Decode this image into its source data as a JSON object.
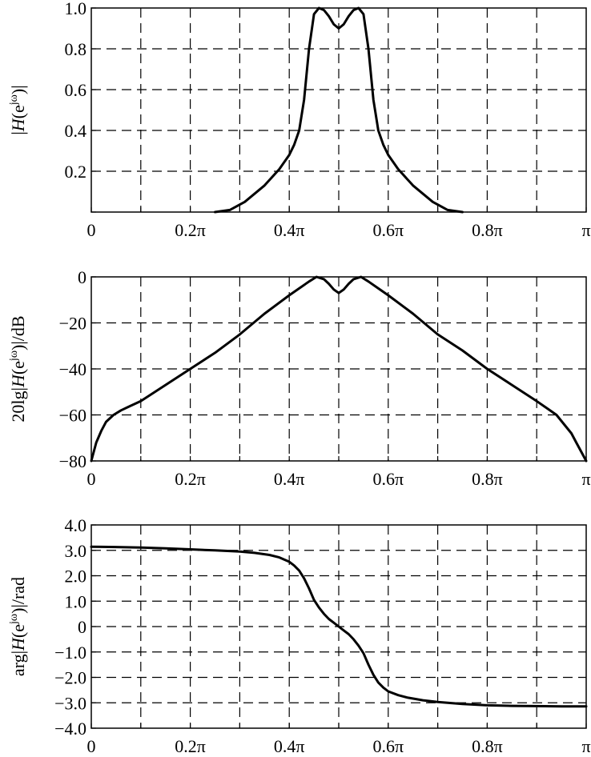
{
  "chart_data": [
    {
      "type": "line",
      "ylabel": "|H(e^jω)|",
      "ylabel_parts": [
        "|",
        "H",
        "(e",
        "jω",
        ")|"
      ],
      "xlim": [
        0,
        1
      ],
      "ylim": [
        0,
        1.0
      ],
      "xticks": [
        0,
        0.1,
        0.2,
        0.3,
        0.4,
        0.5,
        0.6,
        0.7,
        0.8,
        0.9,
        1.0
      ],
      "xtick_labels": [
        "0",
        "",
        "0.2π",
        "",
        "0.4π",
        "",
        "0.6π",
        "",
        "0.8π",
        "",
        "π"
      ],
      "yticks": [
        0,
        0.2,
        0.4,
        0.6,
        0.8,
        1.0
      ],
      "ytick_labels": [
        "",
        "0.2",
        "0.4",
        "0.6",
        "0.8",
        "1.0"
      ],
      "grid": true,
      "x": [
        0.25,
        0.28,
        0.31,
        0.35,
        0.38,
        0.4,
        0.41,
        0.42,
        0.43,
        0.44,
        0.45,
        0.46,
        0.47,
        0.48,
        0.49,
        0.5,
        0.51,
        0.52,
        0.53,
        0.54,
        0.55,
        0.56,
        0.57,
        0.58,
        0.59,
        0.6,
        0.62,
        0.65,
        0.69,
        0.72,
        0.75
      ],
      "y": [
        0.0,
        0.01,
        0.05,
        0.13,
        0.21,
        0.28,
        0.33,
        0.4,
        0.55,
        0.8,
        0.97,
        1.0,
        0.99,
        0.96,
        0.92,
        0.9,
        0.92,
        0.96,
        0.99,
        1.0,
        0.97,
        0.8,
        0.55,
        0.4,
        0.33,
        0.28,
        0.21,
        0.13,
        0.05,
        0.01,
        0.0
      ]
    },
    {
      "type": "line",
      "ylabel": "20lg|H(e^jω)|/dB",
      "ylabel_parts": [
        "20lg|",
        "H",
        "(e",
        "jω",
        ")|/dB"
      ],
      "xlim": [
        0,
        1
      ],
      "ylim": [
        -80,
        0
      ],
      "xticks": [
        0,
        0.1,
        0.2,
        0.3,
        0.4,
        0.5,
        0.6,
        0.7,
        0.8,
        0.9,
        1.0
      ],
      "xtick_labels": [
        "0",
        "",
        "0.2π",
        "",
        "0.4π",
        "",
        "0.6π",
        "",
        "0.8π",
        "",
        "π"
      ],
      "yticks": [
        -80,
        -60,
        -40,
        -20,
        0
      ],
      "ytick_labels": [
        "−80",
        "−60",
        "−40",
        "−20",
        "0"
      ],
      "grid": true,
      "x": [
        0.0,
        0.005,
        0.01,
        0.02,
        0.03,
        0.045,
        0.06,
        0.08,
        0.1,
        0.15,
        0.2,
        0.25,
        0.3,
        0.35,
        0.4,
        0.42,
        0.44,
        0.455,
        0.47,
        0.48,
        0.49,
        0.5,
        0.51,
        0.52,
        0.53,
        0.545,
        0.56,
        0.58,
        0.6,
        0.65,
        0.7,
        0.75,
        0.8,
        0.85,
        0.9,
        0.92,
        0.94,
        0.955,
        0.97,
        0.98,
        0.99,
        1.0
      ],
      "y": [
        -80,
        -76,
        -72,
        -67,
        -63,
        -60,
        -58,
        -56,
        -54,
        -47,
        -40,
        -33,
        -25,
        -16,
        -8,
        -5,
        -2,
        0,
        -1,
        -3,
        -5.5,
        -7,
        -5.5,
        -3,
        -1,
        0,
        -2,
        -5,
        -8,
        -16,
        -25,
        -32,
        -40,
        -47,
        -54,
        -57,
        -60,
        -64,
        -68,
        -72,
        -76,
        -80
      ]
    },
    {
      "type": "line",
      "ylabel": "arg|H(e^jω)|/rad",
      "ylabel_parts": [
        "arg|",
        "H",
        "(e",
        "jω",
        ")|/rad"
      ],
      "xlim": [
        0,
        1
      ],
      "ylim": [
        -4.0,
        4.0
      ],
      "xticks": [
        0,
        0.1,
        0.2,
        0.3,
        0.4,
        0.5,
        0.6,
        0.7,
        0.8,
        0.9,
        1.0
      ],
      "xtick_labels": [
        "0",
        "",
        "0.2π",
        "",
        "0.4π",
        "",
        "0.6π",
        "",
        "0.8π",
        "",
        "π"
      ],
      "yticks": [
        -4.0,
        -3.0,
        -2.0,
        -1.0,
        0,
        1.0,
        2.0,
        3.0,
        4.0
      ],
      "ytick_labels": [
        "−4.0",
        "−3.0",
        "−2.0",
        "−1.0",
        "0",
        "1.0",
        "2.0",
        "3.0",
        "4.0"
      ],
      "grid": true,
      "x": [
        0.0,
        0.05,
        0.1,
        0.15,
        0.2,
        0.25,
        0.3,
        0.33,
        0.36,
        0.38,
        0.4,
        0.41,
        0.42,
        0.43,
        0.44,
        0.45,
        0.46,
        0.47,
        0.48,
        0.49,
        0.5,
        0.51,
        0.52,
        0.53,
        0.54,
        0.55,
        0.56,
        0.57,
        0.58,
        0.59,
        0.6,
        0.62,
        0.64,
        0.67,
        0.7,
        0.75,
        0.8,
        0.85,
        0.9,
        0.95,
        1.0
      ],
      "y": [
        3.14,
        3.13,
        3.11,
        3.08,
        3.04,
        3.0,
        2.95,
        2.9,
        2.82,
        2.72,
        2.55,
        2.4,
        2.2,
        1.9,
        1.5,
        1.05,
        0.75,
        0.5,
        0.3,
        0.15,
        0.0,
        -0.15,
        -0.3,
        -0.5,
        -0.75,
        -1.05,
        -1.5,
        -1.9,
        -2.2,
        -2.4,
        -2.55,
        -2.7,
        -2.8,
        -2.9,
        -2.97,
        -3.05,
        -3.1,
        -3.12,
        -3.13,
        -3.14,
        -3.14
      ]
    }
  ]
}
